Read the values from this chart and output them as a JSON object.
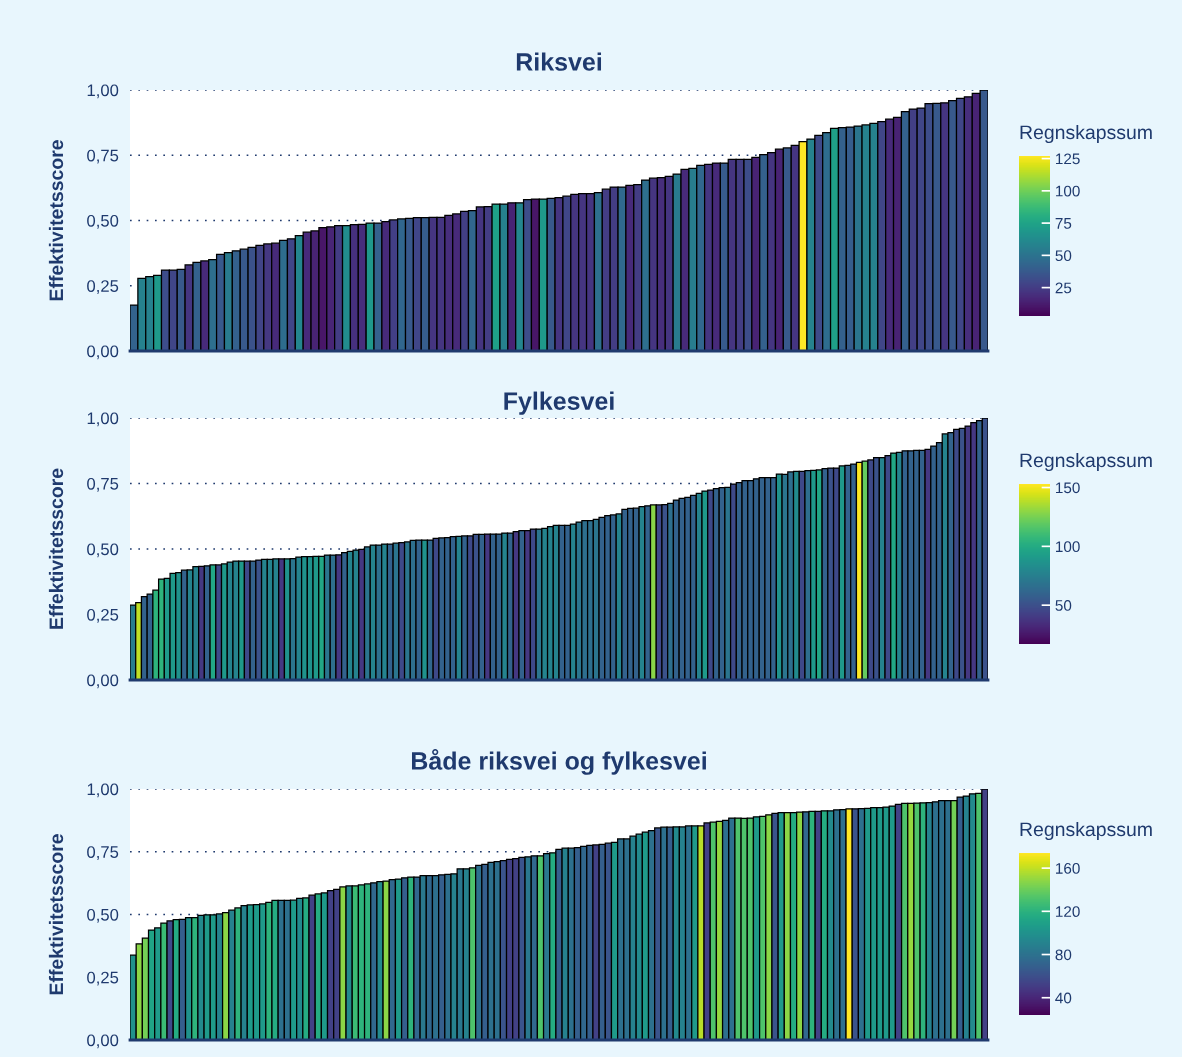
{
  "chart_data": [
    {
      "type": "bar",
      "title": "Riksvei",
      "categories": [
        null,
        null,
        null,
        null,
        null,
        null,
        null,
        null,
        null,
        null,
        null,
        null,
        null,
        null,
        null,
        null,
        null,
        null,
        null,
        null,
        null,
        null,
        null,
        null,
        null,
        null,
        null,
        null,
        null,
        null,
        null,
        null,
        null,
        null,
        null,
        null,
        null,
        null,
        null,
        null,
        null,
        null,
        null,
        null,
        null,
        null,
        null,
        null,
        null,
        null,
        null,
        null,
        null,
        null,
        null,
        null,
        null,
        null,
        null,
        null,
        null,
        null,
        null,
        null,
        null,
        null,
        null,
        null,
        null,
        null,
        null,
        null,
        null,
        null,
        null,
        null,
        null,
        null,
        null,
        null,
        null,
        null,
        null,
        null,
        null,
        null,
        null,
        null,
        null,
        null,
        null,
        null,
        null,
        null,
        null,
        null,
        null,
        null,
        null,
        null,
        null,
        null,
        null,
        null,
        null,
        null,
        null,
        null,
        null
      ],
      "ylabel": "Effektivitetsscore",
      "clabel": "Regnskapssum",
      "clim": [
        3,
        127
      ],
      "cticks": [
        25,
        50,
        75,
        100,
        125
      ],
      "ylim": [
        0,
        1
      ],
      "yticks": [
        {
          "value": 0,
          "label": "0,00"
        },
        {
          "value": 0.25,
          "label": "0,25"
        },
        {
          "value": 0.5,
          "label": "0,50"
        },
        {
          "value": 0.75,
          "label": "0,75"
        },
        {
          "value": 1,
          "label": "1,00"
        }
      ],
      "grid": "y",
      "tick_labels": "y",
      "values": [
        0.176,
        0.278,
        0.285,
        0.29,
        0.31,
        0.31,
        0.313,
        0.33,
        0.34,
        0.345,
        0.35,
        0.37,
        0.377,
        0.384,
        0.39,
        0.397,
        0.405,
        0.41,
        0.413,
        0.424,
        0.43,
        0.442,
        0.455,
        0.46,
        0.473,
        0.476,
        0.48,
        0.48,
        0.484,
        0.485,
        0.49,
        0.49,
        0.496,
        0.502,
        0.506,
        0.508,
        0.511,
        0.511,
        0.512,
        0.512,
        0.52,
        0.525,
        0.535,
        0.538,
        0.552,
        0.553,
        0.563,
        0.563,
        0.568,
        0.568,
        0.58,
        0.582,
        0.582,
        0.585,
        0.588,
        0.593,
        0.6,
        0.603,
        0.603,
        0.607,
        0.62,
        0.628,
        0.628,
        0.635,
        0.637,
        0.655,
        0.662,
        0.664,
        0.669,
        0.678,
        0.696,
        0.7,
        0.711,
        0.715,
        0.72,
        0.72,
        0.734,
        0.734,
        0.734,
        0.742,
        0.752,
        0.76,
        0.773,
        0.778,
        0.788,
        0.802,
        0.812,
        0.826,
        0.837,
        0.853,
        0.856,
        0.858,
        0.862,
        0.866,
        0.872,
        0.879,
        0.888,
        0.895,
        0.917,
        0.927,
        0.931,
        0.948,
        0.949,
        0.951,
        0.959,
        0.968,
        0.974,
        0.987,
        1.0
      ],
      "cvalues": [
        42,
        58,
        58,
        70,
        32,
        29,
        37,
        22,
        41,
        18,
        48,
        37,
        54,
        41,
        37,
        34,
        28,
        23,
        18,
        47,
        29,
        60,
        18,
        15,
        10,
        16,
        25,
        63,
        20,
        19,
        69,
        41,
        18,
        26,
        44,
        37,
        29,
        39,
        22,
        22,
        19,
        18,
        26,
        44,
        22,
        25,
        73,
        58,
        15,
        60,
        32,
        10,
        70,
        37,
        22,
        29,
        22,
        22,
        22,
        48,
        25,
        25,
        45,
        18,
        25,
        48,
        22,
        19,
        22,
        54,
        18,
        55,
        44,
        22,
        18,
        38,
        22,
        25,
        32,
        15,
        41,
        22,
        15,
        37,
        22,
        127,
        58,
        31,
        47,
        73,
        41,
        39,
        51,
        58,
        58,
        29,
        18,
        15,
        41,
        26,
        29,
        32,
        37,
        22,
        37,
        29,
        19,
        15,
        37
      ]
    },
    {
      "type": "bar",
      "title": "Fylkesvei",
      "categories": [
        null,
        null,
        null,
        null,
        null,
        null,
        null,
        null,
        null,
        null,
        null,
        null,
        null,
        null,
        null,
        null,
        null,
        null,
        null,
        null,
        null,
        null,
        null,
        null,
        null,
        null,
        null,
        null,
        null,
        null,
        null,
        null,
        null,
        null,
        null,
        null,
        null,
        null,
        null,
        null,
        null,
        null,
        null,
        null,
        null,
        null,
        null,
        null,
        null,
        null,
        null,
        null,
        null,
        null,
        null,
        null,
        null,
        null,
        null,
        null,
        null,
        null,
        null,
        null,
        null,
        null,
        null,
        null,
        null,
        null,
        null,
        null,
        null,
        null,
        null,
        null,
        null,
        null,
        null,
        null,
        null,
        null,
        null,
        null,
        null,
        null,
        null,
        null,
        null,
        null,
        null,
        null,
        null,
        null,
        null,
        null,
        null,
        null,
        null,
        null,
        null,
        null,
        null,
        null,
        null,
        null,
        null,
        null,
        null,
        null,
        null,
        null,
        null,
        null,
        null,
        null,
        null,
        null,
        null,
        null,
        null,
        null,
        null,
        null,
        null,
        null,
        null,
        null,
        null,
        null,
        null,
        null,
        null,
        null,
        null,
        null,
        null,
        null,
        null,
        null,
        null,
        null,
        null,
        null,
        null,
        null,
        null,
        null,
        null,
        null
      ],
      "ylabel": "Effektivitetsscore",
      "clabel": "Regnskapssum",
      "clim": [
        17,
        153
      ],
      "cticks": [
        50,
        100,
        150
      ],
      "ylim": [
        0,
        1
      ],
      "yticks": [
        {
          "value": 0,
          "label": "0,00"
        },
        {
          "value": 0.25,
          "label": "0,25"
        },
        {
          "value": 0.5,
          "label": "0,50"
        },
        {
          "value": 0.75,
          "label": "0,75"
        },
        {
          "value": 1,
          "label": "1,00"
        }
      ],
      "grid": "y",
      "tick_labels": "y",
      "values": [
        0.286,
        0.295,
        0.318,
        0.328,
        0.343,
        0.385,
        0.388,
        0.407,
        0.41,
        0.419,
        0.42,
        0.433,
        0.434,
        0.436,
        0.439,
        0.439,
        0.443,
        0.45,
        0.454,
        0.454,
        0.454,
        0.454,
        0.458,
        0.46,
        0.46,
        0.462,
        0.462,
        0.462,
        0.463,
        0.469,
        0.471,
        0.471,
        0.472,
        0.472,
        0.477,
        0.477,
        0.478,
        0.486,
        0.491,
        0.496,
        0.499,
        0.508,
        0.515,
        0.515,
        0.519,
        0.519,
        0.522,
        0.524,
        0.527,
        0.533,
        0.534,
        0.534,
        0.534,
        0.541,
        0.542,
        0.543,
        0.547,
        0.548,
        0.55,
        0.55,
        0.556,
        0.556,
        0.557,
        0.557,
        0.557,
        0.561,
        0.561,
        0.566,
        0.57,
        0.57,
        0.576,
        0.576,
        0.579,
        0.585,
        0.59,
        0.59,
        0.59,
        0.595,
        0.603,
        0.608,
        0.608,
        0.613,
        0.621,
        0.627,
        0.63,
        0.634,
        0.651,
        0.655,
        0.656,
        0.662,
        0.665,
        0.668,
        0.668,
        0.669,
        0.674,
        0.687,
        0.693,
        0.697,
        0.705,
        0.712,
        0.721,
        0.725,
        0.73,
        0.734,
        0.735,
        0.748,
        0.753,
        0.761,
        0.761,
        0.768,
        0.772,
        0.772,
        0.772,
        0.786,
        0.785,
        0.794,
        0.796,
        0.796,
        0.799,
        0.8,
        0.802,
        0.807,
        0.809,
        0.809,
        0.817,
        0.819,
        0.824,
        0.831,
        0.835,
        0.84,
        0.849,
        0.849,
        0.856,
        0.866,
        0.869,
        0.875,
        0.875,
        0.876,
        0.876,
        0.88,
        0.893,
        0.906,
        0.939,
        0.944,
        0.957,
        0.96,
        0.969,
        0.982,
        0.99,
        1.0
      ],
      "cvalues": [
        74,
        140,
        59,
        59,
        105,
        105,
        90,
        90,
        86,
        59,
        78,
        78,
        39,
        59,
        98,
        47,
        90,
        78,
        78,
        90,
        47,
        59,
        51,
        78,
        78,
        78,
        39,
        86,
        70,
        78,
        86,
        86,
        90,
        98,
        70,
        66,
        39,
        59,
        78,
        78,
        39,
        70,
        78,
        66,
        78,
        59,
        70,
        47,
        70,
        66,
        59,
        86,
        62,
        47,
        59,
        59,
        59,
        78,
        59,
        47,
        51,
        59,
        39,
        59,
        59,
        78,
        59,
        39,
        59,
        39,
        47,
        70,
        78,
        78,
        78,
        59,
        59,
        78,
        70,
        66,
        66,
        70,
        59,
        59,
        59,
        78,
        59,
        59,
        59,
        78,
        59,
        129,
        47,
        51,
        66,
        59,
        59,
        59,
        59,
        78,
        90,
        47,
        59,
        59,
        70,
        47,
        59,
        59,
        59,
        59,
        59,
        59,
        59,
        86,
        70,
        66,
        82,
        47,
        66,
        90,
        98,
        59,
        51,
        47,
        90,
        59,
        59,
        152,
        121,
        47,
        51,
        78,
        47,
        98,
        78,
        59,
        59,
        59,
        59,
        39,
        59,
        59,
        78,
        59,
        47,
        51,
        39,
        39,
        59,
        51
      ]
    },
    {
      "type": "bar",
      "title": "Både riksvei og fylkesvei",
      "categories": [
        null,
        null,
        null,
        null,
        null,
        null,
        null,
        null,
        null,
        null,
        null,
        null,
        null,
        null,
        null,
        null,
        null,
        null,
        null,
        null,
        null,
        null,
        null,
        null,
        null,
        null,
        null,
        null,
        null,
        null,
        null,
        null,
        null,
        null,
        null,
        null,
        null,
        null,
        null,
        null,
        null,
        null,
        null,
        null,
        null,
        null,
        null,
        null,
        null,
        null,
        null,
        null,
        null,
        null,
        null,
        null,
        null,
        null,
        null,
        null,
        null,
        null,
        null,
        null,
        null,
        null,
        null,
        null,
        null,
        null,
        null,
        null,
        null,
        null,
        null,
        null,
        null,
        null,
        null,
        null,
        null,
        null,
        null,
        null,
        null,
        null,
        null,
        null,
        null,
        null,
        null,
        null,
        null,
        null,
        null,
        null,
        null,
        null,
        null,
        null,
        null,
        null,
        null,
        null,
        null,
        null,
        null,
        null,
        null,
        null,
        null,
        null,
        null,
        null,
        null,
        null,
        null,
        null,
        null,
        null,
        null,
        null,
        null,
        null,
        null,
        null,
        null,
        null,
        null,
        null,
        null,
        null,
        null,
        null,
        null,
        null,
        null,
        null,
        null
      ],
      "ylabel": "Effektivitetsscore",
      "clabel": "Regnskapssum",
      "clim": [
        24,
        174
      ],
      "cticks": [
        40,
        80,
        120,
        160
      ],
      "ylim": [
        0,
        1
      ],
      "yticks": [
        {
          "value": 0,
          "label": "0,00"
        },
        {
          "value": 0.25,
          "label": "0,25"
        },
        {
          "value": 0.5,
          "label": "0,50"
        },
        {
          "value": 0.75,
          "label": "0,75"
        },
        {
          "value": 1,
          "label": "1,00"
        }
      ],
      "grid": "y",
      "tick_labels": "y",
      "values": [
        0.338,
        0.383,
        0.406,
        0.438,
        0.447,
        0.466,
        0.475,
        0.48,
        0.481,
        0.488,
        0.488,
        0.497,
        0.499,
        0.499,
        0.502,
        0.507,
        0.517,
        0.526,
        0.535,
        0.538,
        0.539,
        0.542,
        0.548,
        0.556,
        0.556,
        0.556,
        0.557,
        0.564,
        0.566,
        0.577,
        0.582,
        0.586,
        0.595,
        0.6,
        0.61,
        0.614,
        0.614,
        0.618,
        0.622,
        0.626,
        0.631,
        0.633,
        0.639,
        0.641,
        0.646,
        0.649,
        0.649,
        0.655,
        0.655,
        0.655,
        0.658,
        0.66,
        0.662,
        0.682,
        0.682,
        0.686,
        0.696,
        0.7,
        0.708,
        0.711,
        0.715,
        0.72,
        0.723,
        0.728,
        0.73,
        0.734,
        0.734,
        0.743,
        0.746,
        0.759,
        0.764,
        0.764,
        0.766,
        0.771,
        0.775,
        0.777,
        0.779,
        0.784,
        0.787,
        0.801,
        0.801,
        0.812,
        0.82,
        0.828,
        0.834,
        0.845,
        0.848,
        0.848,
        0.849,
        0.849,
        0.853,
        0.853,
        0.853,
        0.865,
        0.868,
        0.871,
        0.875,
        0.884,
        0.884,
        0.883,
        0.884,
        0.889,
        0.891,
        0.897,
        0.903,
        0.906,
        0.906,
        0.906,
        0.908,
        0.909,
        0.911,
        0.911,
        0.913,
        0.913,
        0.917,
        0.918,
        0.921,
        0.921,
        0.922,
        0.923,
        0.926,
        0.926,
        0.928,
        0.932,
        0.939,
        0.943,
        0.943,
        0.944,
        0.945,
        0.946,
        0.949,
        0.954,
        0.954,
        0.954,
        0.968,
        0.972,
        0.981,
        0.983,
        1.0
      ],
      "cvalues": [
        100,
        148,
        142,
        111,
        105,
        126,
        58,
        116,
        69,
        100,
        121,
        95,
        105,
        105,
        90,
        148,
        90,
        121,
        90,
        105,
        105,
        105,
        121,
        116,
        79,
        79,
        105,
        95,
        116,
        53,
        116,
        105,
        53,
        53,
        148,
        95,
        126,
        121,
        121,
        74,
        95,
        148,
        74,
        105,
        69,
        121,
        74,
        84,
        74,
        79,
        69,
        79,
        90,
        84,
        90,
        132,
        79,
        69,
        79,
        79,
        63,
        53,
        53,
        63,
        84,
        74,
        132,
        84,
        116,
        69,
        90,
        79,
        69,
        74,
        69,
        53,
        69,
        63,
        105,
        79,
        79,
        90,
        95,
        105,
        79,
        63,
        79,
        69,
        95,
        90,
        79,
        105,
        158,
        53,
        132,
        150,
        79,
        79,
        132,
        132,
        132,
        105,
        132,
        148,
        63,
        105,
        148,
        116,
        148,
        74,
        121,
        53,
        116,
        95,
        79,
        79,
        174,
        63,
        79,
        105,
        105,
        105,
        105,
        105,
        53,
        132,
        150,
        132,
        121,
        90,
        79,
        79,
        79,
        142,
        69,
        90,
        95,
        132,
        53
      ]
    }
  ]
}
